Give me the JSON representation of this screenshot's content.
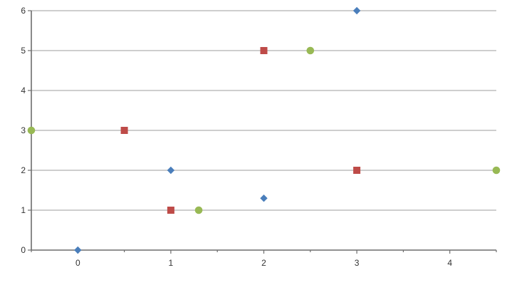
{
  "chart_data": {
    "type": "scatter",
    "title": "",
    "xlabel": "",
    "ylabel": "",
    "xlim": [
      -0.5,
      4.5
    ],
    "ylim": [
      0,
      6
    ],
    "x_ticks": [
      0,
      1,
      2,
      3,
      4
    ],
    "y_ticks": [
      0,
      1,
      2,
      3,
      4,
      5,
      6
    ],
    "x_tick_labels": [
      "0",
      "1",
      "2",
      "3",
      "4"
    ],
    "y_tick_labels": [
      "0",
      "1",
      "2",
      "3",
      "4",
      "5",
      "6"
    ],
    "grid": "horizontal",
    "legend": "none",
    "series": [
      {
        "marker": "diamond",
        "color": "#4a7ebb",
        "points": [
          {
            "x": 0,
            "y": 0
          },
          {
            "x": 1,
            "y": 2
          },
          {
            "x": 2,
            "y": 1.3
          },
          {
            "x": 3,
            "y": 6
          }
        ]
      },
      {
        "marker": "square",
        "color": "#be4b48",
        "points": [
          {
            "x": 0.5,
            "y": 3
          },
          {
            "x": 1,
            "y": 1
          },
          {
            "x": 2,
            "y": 5
          },
          {
            "x": 3,
            "y": 2
          }
        ]
      },
      {
        "marker": "circle",
        "color": "#98b954",
        "points": [
          {
            "x": -0.5,
            "y": 3
          },
          {
            "x": 1.3,
            "y": 1
          },
          {
            "x": 2.5,
            "y": 5
          },
          {
            "x": 4.5,
            "y": 2
          }
        ]
      }
    ]
  }
}
